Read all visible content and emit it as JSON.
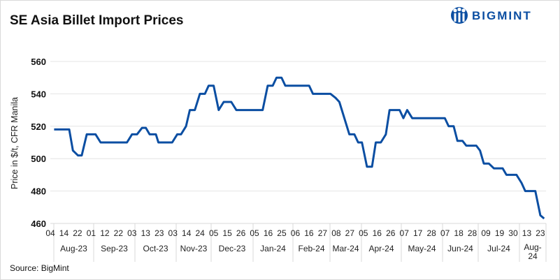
{
  "chart_data": {
    "type": "line",
    "title": "SE Asia Billet Import Prices",
    "ylabel": "Price in $/t, CFR Manila",
    "xlabel": "",
    "ylim": [
      460,
      560
    ],
    "yticks": [
      "460",
      "480",
      "500",
      "520",
      "540",
      "560"
    ],
    "x_unit": "days since 04 Aug 2023 (approx.)",
    "xlim": [
      -3,
      391.5
    ],
    "grid": "horizontal",
    "line_color": "#0b4ea2",
    "series": [
      {
        "name": "SE Asia Billet Import Price",
        "points": [
          [
            0,
            518
          ],
          [
            12,
            518
          ],
          [
            15,
            505
          ],
          [
            19,
            502
          ],
          [
            22,
            502
          ],
          [
            26,
            515
          ],
          [
            33,
            515
          ],
          [
            37,
            510
          ],
          [
            58,
            510
          ],
          [
            62,
            515
          ],
          [
            66,
            515
          ],
          [
            70,
            519
          ],
          [
            73,
            519
          ],
          [
            76,
            515
          ],
          [
            81,
            515
          ],
          [
            83,
            510
          ],
          [
            94,
            510
          ],
          [
            98,
            515
          ],
          [
            101,
            515
          ],
          [
            105,
            520
          ],
          [
            108,
            530
          ],
          [
            112,
            530
          ],
          [
            116,
            540
          ],
          [
            120,
            540
          ],
          [
            123,
            545
          ],
          [
            127,
            545
          ],
          [
            131,
            530
          ],
          [
            135,
            535
          ],
          [
            141,
            535
          ],
          [
            145,
            530
          ],
          [
            166,
            530
          ],
          [
            170,
            545
          ],
          [
            174,
            545
          ],
          [
            177,
            550
          ],
          [
            181,
            550
          ],
          [
            184,
            545
          ],
          [
            203,
            545
          ],
          [
            206,
            540
          ],
          [
            220,
            540
          ],
          [
            224,
            537.5
          ],
          [
            227,
            535
          ],
          [
            235,
            515
          ],
          [
            239,
            515
          ],
          [
            242,
            510
          ],
          [
            245,
            510
          ],
          [
            249,
            495
          ],
          [
            253,
            495
          ],
          [
            256,
            510
          ],
          [
            260,
            510
          ],
          [
            264,
            515
          ],
          [
            267,
            530
          ],
          [
            275,
            530
          ],
          [
            278,
            525
          ],
          [
            281,
            530
          ],
          [
            285,
            525
          ],
          [
            311,
            525
          ],
          [
            314,
            520
          ],
          [
            318,
            520
          ],
          [
            321,
            511
          ],
          [
            325,
            511
          ],
          [
            328,
            508
          ],
          [
            336,
            508
          ],
          [
            339,
            505
          ],
          [
            342,
            497
          ],
          [
            346,
            497
          ],
          [
            350,
            494
          ],
          [
            357,
            494
          ],
          [
            360,
            490
          ],
          [
            368,
            490
          ],
          [
            372,
            485
          ],
          [
            375,
            480
          ],
          [
            383,
            480
          ],
          [
            387,
            465
          ],
          [
            390,
            463
          ]
        ]
      }
    ],
    "xtick_groups": [
      {
        "month": "Aug-23",
        "days": [
          "04",
          "14",
          "22"
        ]
      },
      {
        "month": "Sep-23",
        "days": [
          "01",
          "12",
          "22"
        ]
      },
      {
        "month": "Oct-23",
        "days": [
          "03",
          "13",
          "23"
        ]
      },
      {
        "month": "Nov-23",
        "days": [
          "03",
          "14",
          "24"
        ]
      },
      {
        "month": "Dec-23",
        "days": [
          "05",
          "15",
          "26"
        ]
      },
      {
        "month": "Jan-24",
        "days": [
          "05",
          "16",
          "25"
        ]
      },
      {
        "month": "Feb-24",
        "days": [
          "06",
          "16",
          "27"
        ]
      },
      {
        "month": "Mar-24",
        "days": [
          "08",
          "27"
        ]
      },
      {
        "month": "Apr-24",
        "days": [
          "05",
          "16",
          "26"
        ]
      },
      {
        "month": "May-24",
        "days": [
          "07",
          "17",
          "28"
        ]
      },
      {
        "month": "Jun-24",
        "days": [
          "07",
          "18",
          "28"
        ]
      },
      {
        "month": "Jul-24",
        "days": [
          "09",
          "19",
          "30"
        ]
      },
      {
        "month": "Aug-24",
        "days": [
          "13",
          "23"
        ],
        "month_lines": [
          "Aug-",
          "24"
        ]
      }
    ],
    "source": "Source: BigMint"
  },
  "logo": {
    "text": "BIGMINT",
    "color": "#0b4ea2"
  }
}
